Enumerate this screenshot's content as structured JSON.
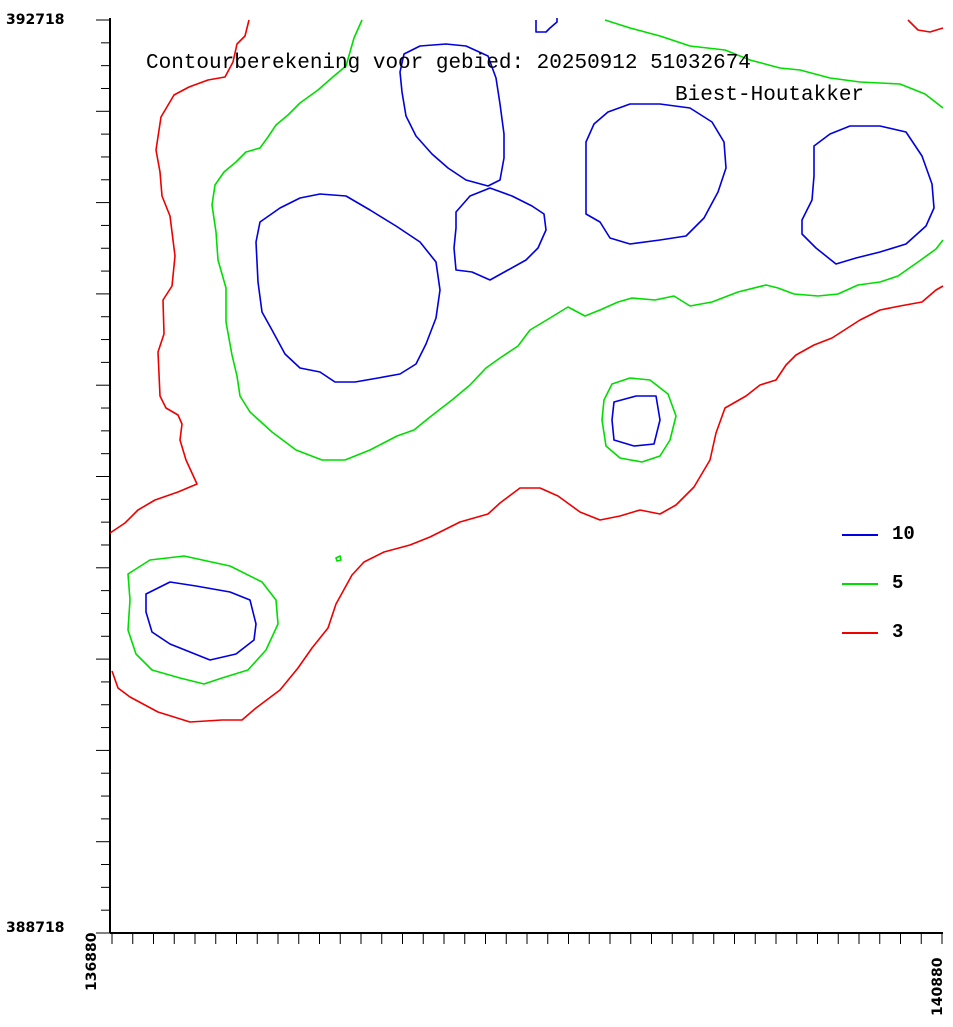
{
  "chart_data": {
    "type": "contour",
    "title": "Contourberekening voor gebied: 20250912 51032674",
    "subtitle": "Biest-Houtakker",
    "x_ticks": [
      "136880",
      "140880"
    ],
    "y_ticks": [
      "392718",
      "388718"
    ],
    "xlim": [
      136880,
      140880
    ],
    "ylim": [
      388718,
      392718
    ],
    "legend_position": "right",
    "series": [
      {
        "name": "10",
        "color": "#0000e0"
      },
      {
        "name": "5",
        "color": "#00dd00"
      },
      {
        "name": "3",
        "color": "#ee0000"
      }
    ]
  }
}
